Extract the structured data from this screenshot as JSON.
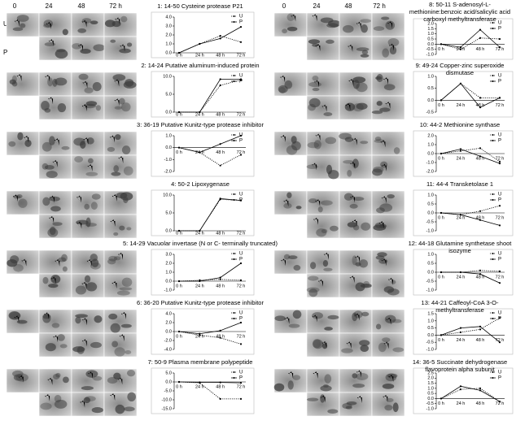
{
  "gel_headers": [
    {
      "columns": [
        "0",
        "24",
        "48",
        "72 h"
      ],
      "rows": [
        "U",
        "P"
      ]
    },
    {
      "columns": [
        "0",
        "24",
        "48",
        "72 h"
      ]
    }
  ],
  "chart_data": [
    {
      "type": "line",
      "title": "1: 14-50 Cysteine protease P21",
      "categories": [
        "0 h",
        "24 h",
        "48 h",
        "72 h"
      ],
      "series": [
        {
          "name": "U",
          "color": "#000000",
          "style": "dotted",
          "values": [
            0,
            1.0,
            1.9,
            1.2
          ]
        },
        {
          "name": "P",
          "color": "#000000",
          "style": "solid",
          "values": [
            0,
            1.0,
            1.6,
            2.9
          ]
        }
      ],
      "ylim": [
        0,
        4
      ],
      "yticks": [
        {
          "value": 0,
          "label": "0.0"
        },
        {
          "value": 1,
          "label": "1.0"
        },
        {
          "value": 2,
          "label": "2.0"
        },
        {
          "value": 3,
          "label": "3.0"
        },
        {
          "value": 4,
          "label": "4.0"
        }
      ],
      "legend": "upper right"
    },
    {
      "type": "line",
      "title": "2: 14-24 Putative aluminum-induced protein",
      "categories": [
        "0 h",
        "24 h",
        "48 h",
        "72 h"
      ],
      "series": [
        {
          "name": "U",
          "color": "#000000",
          "style": "dotted",
          "values": [
            0,
            0,
            7.5,
            9.0
          ]
        },
        {
          "name": "P",
          "color": "#000000",
          "style": "solid",
          "values": [
            0,
            0,
            9.2,
            9.2
          ]
        }
      ],
      "ylim": [
        0,
        10
      ],
      "yticks": [
        {
          "value": 0,
          "label": "0.0"
        },
        {
          "value": 5,
          "label": "5.0"
        },
        {
          "value": 10,
          "label": "10.0"
        }
      ],
      "legend": "upper right"
    },
    {
      "type": "line",
      "title": "3: 36-19 Putative Kunitz-type protease inhibitor",
      "categories": [
        "0 h",
        "24 h",
        "48 h",
        "72 h"
      ],
      "series": [
        {
          "name": "U",
          "color": "#000000",
          "style": "dotted",
          "values": [
            0,
            -0.4,
            -1.5,
            -0.6
          ]
        },
        {
          "name": "P",
          "color": "#000000",
          "style": "solid",
          "values": [
            0,
            -0.4,
            0.3,
            1.0
          ]
        }
      ],
      "ylim": [
        -2,
        1
      ],
      "yticks": [
        {
          "value": -2,
          "label": "-2.0"
        },
        {
          "value": -1,
          "label": "-1.0"
        },
        {
          "value": 0,
          "label": "0.0"
        },
        {
          "value": 1,
          "label": "1.0"
        }
      ],
      "legend": "upper right"
    },
    {
      "type": "line",
      "title": "4: 50-2 Lipoxygenase",
      "categories": [
        "0 h",
        "24 h",
        "48 h",
        "72 h"
      ],
      "series": [
        {
          "name": "U",
          "color": "#000000",
          "style": "dotted",
          "values": [
            0,
            0,
            8.8,
            8.5
          ]
        },
        {
          "name": "P",
          "color": "#000000",
          "style": "solid",
          "values": [
            0,
            0,
            9.0,
            8.5
          ]
        }
      ],
      "ylim": [
        0,
        10
      ],
      "yticks": [
        {
          "value": 0,
          "label": "0.0"
        },
        {
          "value": 5,
          "label": "5.0"
        },
        {
          "value": 10,
          "label": "10.0"
        }
      ],
      "legend": "upper right"
    },
    {
      "type": "line",
      "title": "5: 14-29 Vacuolar invertase (N or C- terminally truncated)",
      "categories": [
        "0 h",
        "24 h",
        "48 h",
        "72 h"
      ],
      "series": [
        {
          "name": "U",
          "color": "#000000",
          "style": "dotted",
          "values": [
            0,
            0.1,
            0.2,
            0.1
          ]
        },
        {
          "name": "P",
          "color": "#000000",
          "style": "solid",
          "values": [
            0,
            0,
            0.4,
            2.0
          ]
        }
      ],
      "ylim": [
        -1,
        3
      ],
      "yticks": [
        {
          "value": -1,
          "label": "-1.0"
        },
        {
          "value": 0,
          "label": "0.0"
        },
        {
          "value": 1,
          "label": "1.0"
        },
        {
          "value": 2,
          "label": "2.0"
        },
        {
          "value": 3,
          "label": "3.0"
        }
      ],
      "legend": "upper right"
    },
    {
      "type": "line",
      "title": "6: 36-20 Putative Kunitz-type protease inhibitor",
      "categories": [
        "0 h",
        "24 h",
        "48 h",
        "72 h"
      ],
      "series": [
        {
          "name": "U",
          "color": "#000000",
          "style": "dotted",
          "values": [
            0,
            -0.8,
            -1.4,
            -2.8
          ]
        },
        {
          "name": "P",
          "color": "#000000",
          "style": "solid",
          "values": [
            0,
            -0.5,
            0.2,
            2.0
          ]
        }
      ],
      "ylim": [
        -4,
        4
      ],
      "yticks": [
        {
          "value": -4,
          "label": "-4.0"
        },
        {
          "value": -2,
          "label": "-2.0"
        },
        {
          "value": 0,
          "label": "0.0"
        },
        {
          "value": 2,
          "label": "2.0"
        },
        {
          "value": 4,
          "label": "4.0"
        }
      ],
      "legend": "upper right"
    },
    {
      "type": "line",
      "title": "7: 50-9 Plasma membrane polypeptide",
      "categories": [
        "0 h",
        "24 h",
        "48 h",
        "72 h"
      ],
      "series": [
        {
          "name": "U",
          "color": "#000000",
          "style": "dotted",
          "values": [
            0,
            -0.5,
            -9.5,
            -9.5
          ]
        },
        {
          "name": "P",
          "color": "#000000",
          "style": "solid",
          "values": [
            0,
            -0.2,
            -0.3,
            -0.5
          ]
        }
      ],
      "ylim": [
        -15,
        5
      ],
      "yticks": [
        {
          "value": -15,
          "label": "-15.0"
        },
        {
          "value": -10,
          "label": "-10.0"
        },
        {
          "value": -5,
          "label": "-5.0"
        },
        {
          "value": 0,
          "label": "0.0"
        },
        {
          "value": 5,
          "label": "5.0"
        }
      ],
      "legend": "upper right"
    },
    {
      "type": "line",
      "title": "8: 50-11 S-adenosyl-L-methionine:benzoic acid/salicylic acid carboxyl methyltransferase",
      "categories": [
        "0 h",
        "24 h",
        "48 h",
        "72 h"
      ],
      "series": [
        {
          "name": "U",
          "color": "#000000",
          "style": "dotted",
          "values": [
            0,
            -0.5,
            0.6,
            0.5
          ]
        },
        {
          "name": "P",
          "color": "#000000",
          "style": "solid",
          "values": [
            0,
            -0.3,
            1.4,
            -0.3
          ]
        }
      ],
      "ylim": [
        -1,
        2
      ],
      "yticks": [
        {
          "value": -1,
          "label": "-1.0"
        },
        {
          "value": -0.5,
          "label": "-0.5"
        },
        {
          "value": 0,
          "label": "0.0"
        },
        {
          "value": 0.5,
          "label": "0.5"
        },
        {
          "value": 1,
          "label": "1.0"
        },
        {
          "value": 1.5,
          "label": "1.5"
        },
        {
          "value": 2,
          "label": "2.0"
        }
      ],
      "legend": "upper right"
    },
    {
      "type": "line",
      "title": "9: 49-24 Copper-zinc superoxide dismutase",
      "categories": [
        "0 h",
        "24 h",
        "48 h",
        "72 h"
      ],
      "series": [
        {
          "name": "U",
          "color": "#000000",
          "style": "dotted",
          "values": [
            0,
            0.7,
            0.1,
            0.1
          ]
        },
        {
          "name": "P",
          "color": "#000000",
          "style": "solid",
          "values": [
            0,
            0.7,
            -0.3,
            0.1
          ]
        }
      ],
      "ylim": [
        -0.5,
        1
      ],
      "yticks": [
        {
          "value": -0.5,
          "label": "-0.5"
        },
        {
          "value": 0,
          "label": "0.0"
        },
        {
          "value": 0.5,
          "label": "0.5"
        },
        {
          "value": 1,
          "label": "1.0"
        }
      ],
      "legend": "upper right"
    },
    {
      "type": "line",
      "title": "10: 44-2 Methionine synthase",
      "categories": [
        "0 h",
        "24 h",
        "48 h",
        "72 h"
      ],
      "series": [
        {
          "name": "U",
          "color": "#000000",
          "style": "dotted",
          "values": [
            0,
            0.3,
            0.6,
            -0.9
          ]
        },
        {
          "name": "P",
          "color": "#000000",
          "style": "solid",
          "values": [
            0,
            0.5,
            -0.3,
            -1.1
          ]
        }
      ],
      "ylim": [
        -2,
        2
      ],
      "yticks": [
        {
          "value": -2,
          "label": "-2.0"
        },
        {
          "value": -1,
          "label": "-1.0"
        },
        {
          "value": 0,
          "label": "0.0"
        },
        {
          "value": 1,
          "label": "1.0"
        },
        {
          "value": 2,
          "label": "2.0"
        }
      ],
      "legend": "upper right"
    },
    {
      "type": "line",
      "title": "11: 44-4 Transketolase 1",
      "categories": [
        "0 h",
        "24 h",
        "48 h",
        "72 h"
      ],
      "series": [
        {
          "name": "U",
          "color": "#000000",
          "style": "dotted",
          "values": [
            0,
            -0.1,
            0.1,
            0.4
          ]
        },
        {
          "name": "P",
          "color": "#000000",
          "style": "solid",
          "values": [
            0,
            -0.1,
            -0.4,
            -0.7
          ]
        }
      ],
      "ylim": [
        -1,
        1
      ],
      "yticks": [
        {
          "value": -1,
          "label": "-1.0"
        },
        {
          "value": -0.5,
          "label": "-0.5"
        },
        {
          "value": 0,
          "label": "0.0"
        },
        {
          "value": 0.5,
          "label": "0.5"
        },
        {
          "value": 1,
          "label": "1.0"
        }
      ],
      "legend": "upper right"
    },
    {
      "type": "line",
      "title": "12: 44-18 Glutamine synthetase shoot isozyme",
      "categories": [
        "0 h",
        "24 h",
        "48 h",
        "72 h"
      ],
      "series": [
        {
          "name": "U",
          "color": "#000000",
          "style": "dotted",
          "values": [
            0,
            0,
            0.1,
            0.05
          ]
        },
        {
          "name": "P",
          "color": "#000000",
          "style": "solid",
          "values": [
            0,
            0,
            -0.1,
            -0.6
          ]
        }
      ],
      "ylim": [
        -1,
        1
      ],
      "yticks": [
        {
          "value": -1,
          "label": "-1.0"
        },
        {
          "value": -0.5,
          "label": "-0.5"
        },
        {
          "value": 0,
          "label": "0.0"
        },
        {
          "value": 0.5,
          "label": "0.5"
        },
        {
          "value": 1,
          "label": "1.0"
        }
      ],
      "legend": "upper right"
    },
    {
      "type": "line",
      "title": "13: 44-21 Caffeoyl-CoA 3-O-methyltransferase",
      "categories": [
        "0 h",
        "24 h",
        "48 h",
        "72 h"
      ],
      "series": [
        {
          "name": "U",
          "color": "#000000",
          "style": "dotted",
          "values": [
            0,
            0.2,
            0.4,
            1.2
          ]
        },
        {
          "name": "P",
          "color": "#000000",
          "style": "solid",
          "values": [
            0,
            0.5,
            0.6,
            -0.5
          ]
        }
      ],
      "ylim": [
        -1,
        1.5
      ],
      "yticks": [
        {
          "value": -1,
          "label": "-1.0"
        },
        {
          "value": -0.5,
          "label": "-0.5"
        },
        {
          "value": 0,
          "label": "0.0"
        },
        {
          "value": 0.5,
          "label": "0.5"
        },
        {
          "value": 1,
          "label": "1.0"
        },
        {
          "value": 1.5,
          "label": "1.5"
        }
      ],
      "legend": "upper right"
    },
    {
      "type": "line",
      "title": "14: 36-5 Succinate dehydrogenase flavoprotein alpha subunit",
      "categories": [
        "0 h",
        "24 h",
        "48 h",
        "72 h"
      ],
      "series": [
        {
          "name": "U",
          "color": "#000000",
          "style": "dotted",
          "values": [
            0,
            0.9,
            1.0,
            -0.3
          ]
        },
        {
          "name": "P",
          "color": "#000000",
          "style": "solid",
          "values": [
            0,
            1.2,
            0.8,
            -0.3
          ]
        }
      ],
      "ylim": [
        -1,
        2.5
      ],
      "yticks": [
        {
          "value": -1,
          "label": "-1.0"
        },
        {
          "value": -0.5,
          "label": "-0.5"
        },
        {
          "value": 0,
          "label": "0.0"
        },
        {
          "value": 0.5,
          "label": "0.5"
        },
        {
          "value": 1,
          "label": "1.0"
        },
        {
          "value": 1.5,
          "label": "1.5"
        },
        {
          "value": 2,
          "label": "2.0"
        },
        {
          "value": 2.5,
          "label": "2.5"
        }
      ],
      "legend": "upper right"
    }
  ]
}
